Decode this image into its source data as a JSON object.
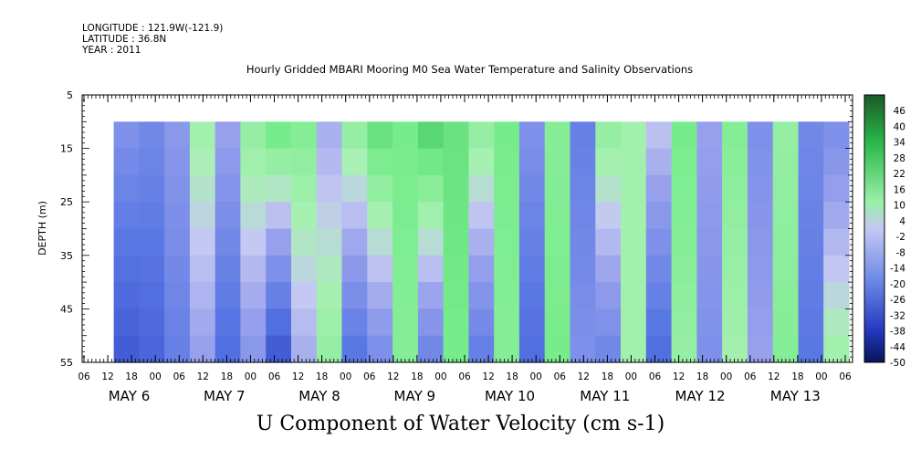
{
  "header": {
    "longitude": "LONGITUDE : 121.9W(-121.9)",
    "latitude": "LATITUDE : 36.8N",
    "year": "YEAR : 2011"
  },
  "chart_data": {
    "type": "heatmap",
    "title": "Hourly Gridded MBARI Mooring M0 Sea Water Temperature and Salinity Observations",
    "xlabel": "U Component of Water Velocity (cm s-1)",
    "ylabel": "DEPTH (m)",
    "y_ticks": [
      5,
      15,
      25,
      35,
      45,
      55
    ],
    "y_range": [
      5,
      55
    ],
    "data_depth_range": [
      10,
      55
    ],
    "hour_ticks": [
      "06",
      "12",
      "18",
      "00",
      "06",
      "12",
      "18",
      "00",
      "06",
      "12",
      "18",
      "00",
      "06",
      "12",
      "18",
      "00",
      "06",
      "12",
      "18",
      "00",
      "06",
      "12",
      "18",
      "00",
      "06",
      "12",
      "18",
      "00",
      "06",
      "12",
      "18",
      "00",
      "06"
    ],
    "date_labels": [
      "MAY  6",
      "MAY  7",
      "MAY  8",
      "MAY  9",
      "MAY 10",
      "MAY 11",
      "MAY 12",
      "MAY 13"
    ],
    "colorbar_labels": [
      "46",
      "40",
      "34",
      "28",
      "22",
      "16",
      "10",
      "4",
      "-2",
      "-8",
      "-14",
      "-20",
      "-26",
      "-32",
      "-38",
      "-44",
      "-50"
    ],
    "colorbar_range": [
      -50,
      52
    ],
    "colors": {
      "strong_negative": "#0a1a78",
      "negative": "#6f8ee8",
      "near_zero": "#b8bff0",
      "positive": "#8ef09a",
      "strong_positive": "#1a6e2a"
    },
    "time_columns": [
      {
        "u_top": -10,
        "u_bottom": -22
      },
      {
        "u_top": -12,
        "u_bottom": -20
      },
      {
        "u_top": -8,
        "u_bottom": -14
      },
      {
        "u_top": 4,
        "u_bottom": -6
      },
      {
        "u_top": -6,
        "u_bottom": -18
      },
      {
        "u_top": 6,
        "u_bottom": -8
      },
      {
        "u_top": 10,
        "u_bottom": -22
      },
      {
        "u_top": 8,
        "u_bottom": -4
      },
      {
        "u_top": -4,
        "u_bottom": 6
      },
      {
        "u_top": 6,
        "u_bottom": -16
      },
      {
        "u_top": 12,
        "u_bottom": -10
      },
      {
        "u_top": 10,
        "u_bottom": 8
      },
      {
        "u_top": 14,
        "u_bottom": -12
      },
      {
        "u_top": 12,
        "u_bottom": 10
      },
      {
        "u_top": 6,
        "u_bottom": -14
      },
      {
        "u_top": 10,
        "u_bottom": 8
      },
      {
        "u_top": -10,
        "u_bottom": -18
      },
      {
        "u_top": 8,
        "u_bottom": 10
      },
      {
        "u_top": -14,
        "u_bottom": -10
      },
      {
        "u_top": 6,
        "u_bottom": -12
      },
      {
        "u_top": 4,
        "u_bottom": 4
      },
      {
        "u_top": -2,
        "u_bottom": -18
      },
      {
        "u_top": 10,
        "u_bottom": 6
      },
      {
        "u_top": -6,
        "u_bottom": -10
      },
      {
        "u_top": 8,
        "u_bottom": 4
      },
      {
        "u_top": -10,
        "u_bottom": -6
      },
      {
        "u_top": 6,
        "u_bottom": 8
      },
      {
        "u_top": -12,
        "u_bottom": -16
      },
      {
        "u_top": -10,
        "u_bottom": 4
      }
    ]
  }
}
